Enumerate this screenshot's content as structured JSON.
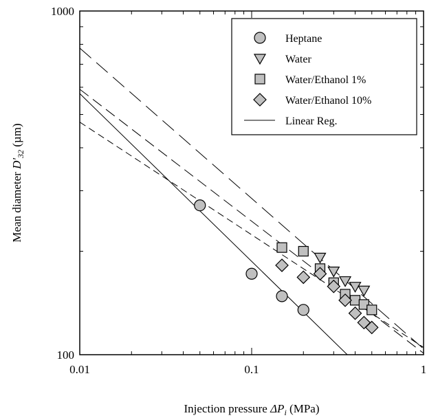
{
  "chart_data": {
    "type": "scatter",
    "title": "",
    "xlabel": "Injection pressure ΔP_i (MPa)",
    "ylabel": "Mean diameter D'_32 (µm)",
    "x_scale": "log",
    "y_scale": "log",
    "xlim": [
      0.01,
      1
    ],
    "ylim": [
      100,
      1000
    ],
    "x_ticks": [
      "0.01",
      "0.1",
      "1"
    ],
    "y_ticks": [
      "100",
      "1000"
    ],
    "grid": false,
    "legend_position": "top-right",
    "series": [
      {
        "name": "Heptane",
        "marker": "circle",
        "x": [
          0.05,
          0.1,
          0.15,
          0.2
        ],
        "y": [
          272,
          172,
          148,
          135
        ]
      },
      {
        "name": "Water",
        "marker": "triangle-down",
        "x": [
          0.25,
          0.3,
          0.35,
          0.4,
          0.45
        ],
        "y": [
          192,
          175,
          164,
          158,
          154
        ]
      },
      {
        "name": "Water/Ethanol 1%",
        "marker": "square",
        "x": [
          0.15,
          0.2,
          0.25,
          0.3,
          0.35,
          0.4,
          0.45,
          0.5
        ],
        "y": [
          205,
          200,
          178,
          162,
          150,
          144,
          140,
          135
        ]
      },
      {
        "name": "Water/Ethanol 10%",
        "marker": "diamond",
        "x": [
          0.15,
          0.2,
          0.25,
          0.3,
          0.35,
          0.4,
          0.45,
          0.5
        ],
        "y": [
          182,
          168,
          172,
          158,
          144,
          132,
          124,
          120
        ]
      },
      {
        "name": "Linear Reg.",
        "marker": "line",
        "x": [],
        "y": []
      }
    ],
    "regression_lines": [
      {
        "series": "Heptane",
        "style": "solid",
        "x": [
          0.01,
          0.36
        ],
        "y": [
          575,
          100
        ]
      },
      {
        "series": "Water",
        "style": "dash-long",
        "x": [
          0.01,
          1
        ],
        "y": [
          780,
          104
        ]
      },
      {
        "series": "Water/Ethanol 1%",
        "style": "dash-medium",
        "x": [
          0.01,
          1
        ],
        "y": [
          592,
          101
        ]
      },
      {
        "series": "Water/Ethanol 10%",
        "style": "dash-short",
        "x": [
          0.01,
          1
        ],
        "y": [
          475,
          105
        ]
      }
    ]
  },
  "axis_text": {
    "xlabel_main": "Injection pressure ",
    "xlabel_sym": "ΔP",
    "xlabel_sub": "i",
    "xlabel_unit": " (MPa)",
    "ylabel_main": "Mean diameter ",
    "ylabel_sym": "D'",
    "ylabel_sub": "32",
    "ylabel_unit": " (µm)"
  }
}
